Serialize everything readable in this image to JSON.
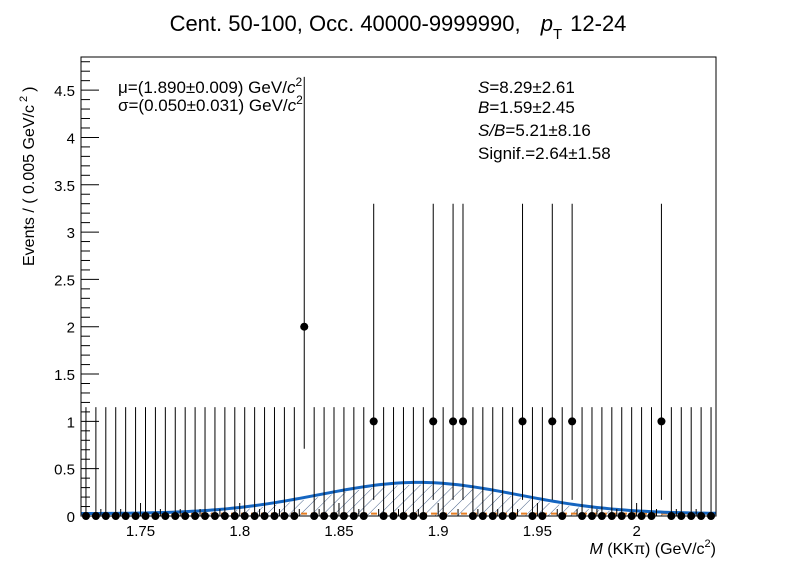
{
  "chart_data": {
    "type": "scatter",
    "title": {
      "main": "Cent. 50-100, Occ. 40000-9999990,",
      "pt_symbol": "p",
      "pt_sub": "T",
      "pt_range": "12-24"
    },
    "xlabel": {
      "var": "M",
      "body": " (KKπ) (GeV/c",
      "sup": "2",
      "close": ")"
    },
    "ylabel": {
      "body": "Events / ( 0.005 GeV/c",
      "sup": "2",
      "close": ")"
    },
    "xlim": [
      1.72,
      2.04
    ],
    "ylim": [
      0,
      4.85
    ],
    "bin_width": 0.005,
    "x_ticks": [
      "1.75",
      "1.8",
      "1.85",
      "1.9",
      "1.95",
      "2"
    ],
    "y_ticks": [
      "0",
      "0.5",
      "1",
      "1.5",
      "2",
      "2.5",
      "3",
      "3.5",
      "4",
      "4.5"
    ],
    "series": [
      {
        "kind": "data",
        "values": [
          [
            1.7225,
            0
          ],
          [
            1.7275,
            0
          ],
          [
            1.7325,
            0
          ],
          [
            1.7375,
            0
          ],
          [
            1.7425,
            0
          ],
          [
            1.7475,
            0
          ],
          [
            1.7525,
            0
          ],
          [
            1.7575,
            0
          ],
          [
            1.7625,
            0
          ],
          [
            1.7675,
            0
          ],
          [
            1.7725,
            0
          ],
          [
            1.7775,
            0
          ],
          [
            1.7825,
            0
          ],
          [
            1.7875,
            0
          ],
          [
            1.7925,
            0
          ],
          [
            1.7975,
            0
          ],
          [
            1.8025,
            0
          ],
          [
            1.8075,
            0
          ],
          [
            1.8125,
            0
          ],
          [
            1.8175,
            0
          ],
          [
            1.8225,
            0
          ],
          [
            1.8275,
            0
          ],
          [
            1.8325,
            2
          ],
          [
            1.8375,
            0
          ],
          [
            1.8425,
            0
          ],
          [
            1.8475,
            0
          ],
          [
            1.8525,
            0
          ],
          [
            1.8575,
            0
          ],
          [
            1.8625,
            0
          ],
          [
            1.8675,
            1
          ],
          [
            1.8725,
            0
          ],
          [
            1.8775,
            0
          ],
          [
            1.8825,
            0
          ],
          [
            1.8875,
            0
          ],
          [
            1.8925,
            0
          ],
          [
            1.8975,
            1
          ],
          [
            1.9025,
            0
          ],
          [
            1.9075,
            1
          ],
          [
            1.9125,
            1
          ],
          [
            1.9175,
            0
          ],
          [
            1.9225,
            0
          ],
          [
            1.9275,
            0
          ],
          [
            1.9325,
            0
          ],
          [
            1.9375,
            0
          ],
          [
            1.9425,
            1
          ],
          [
            1.9475,
            0
          ],
          [
            1.9525,
            0
          ],
          [
            1.9575,
            1
          ],
          [
            1.9625,
            0
          ],
          [
            1.9675,
            1
          ],
          [
            1.9725,
            0
          ],
          [
            1.9775,
            0
          ],
          [
            1.9825,
            0
          ],
          [
            1.9875,
            0
          ],
          [
            1.9925,
            0
          ],
          [
            1.9975,
            0
          ],
          [
            2.0025,
            0
          ],
          [
            2.0075,
            0
          ],
          [
            2.0125,
            1
          ],
          [
            2.0175,
            0
          ],
          [
            2.0225,
            0
          ],
          [
            2.0275,
            0
          ],
          [
            2.0325,
            0
          ],
          [
            2.0375,
            0
          ]
        ]
      },
      {
        "kind": "fit",
        "model": "gaussian + constant",
        "mean": 1.89,
        "sigma": 0.05,
        "peak": 0.33,
        "baseline": 0.025,
        "color": "#1565c0"
      },
      {
        "kind": "signal",
        "mean": 1.89,
        "sigma": 0.05,
        "peak": 0.33,
        "hatch_color": "#1f3f6e"
      },
      {
        "kind": "background",
        "level": 0.025,
        "color": "#e67e22"
      }
    ],
    "annotations": {
      "mu": {
        "symbol": "μ",
        "text": "=(1.890±0.009) GeV/",
        "unit": "c",
        "sup": "2"
      },
      "sigma": {
        "symbol": "σ",
        "text": "=(0.050±0.031) GeV/",
        "unit": "c",
        "sup": "2"
      },
      "S": {
        "label": "S",
        "text": "=8.29±2.61"
      },
      "B": {
        "label": "B",
        "text": "=1.59±2.45"
      },
      "SB": {
        "label": "S/B",
        "text": "=5.21±8.16"
      },
      "signif": {
        "text": "Signif.=2.64±1.58"
      }
    },
    "grid": false,
    "legend": "none"
  }
}
